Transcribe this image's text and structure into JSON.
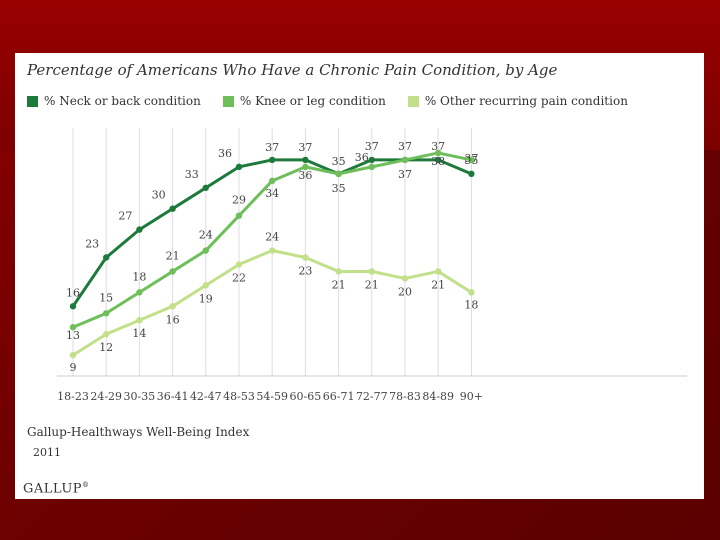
{
  "chart_data": {
    "type": "line",
    "title": "Percentage of Americans Who Have a Chronic Pain Condition, by Age",
    "categories": [
      "18-23",
      "24-29",
      "30-35",
      "36-41",
      "42-47",
      "48-53",
      "54-59",
      "60-65",
      "66-71",
      "72-77",
      "78-83",
      "84-89",
      "90+"
    ],
    "series": [
      {
        "name": "% Neck or back condition",
        "color": "#1e7a3a",
        "values": [
          16,
          23,
          27,
          30,
          33,
          36,
          37,
          37,
          35,
          37,
          37,
          37,
          35
        ]
      },
      {
        "name": "% Knee or leg condition",
        "color": "#6ebe5a",
        "values": [
          13,
          15,
          18,
          21,
          24,
          29,
          34,
          36,
          35,
          36,
          37,
          38,
          37
        ]
      },
      {
        "name": "% Other recurring pain condition",
        "color": "#c2e08a",
        "values": [
          9,
          12,
          14,
          16,
          19,
          22,
          24,
          23,
          21,
          21,
          20,
          21,
          18
        ]
      }
    ],
    "ylim": [
      6,
      40
    ],
    "grid": "vertical",
    "xlabel": "",
    "ylabel": ""
  },
  "source": {
    "line1": "Gallup-Healthways Well-Being Index",
    "line2": "2011"
  },
  "brand": "GALLUP",
  "brand_mark": "®"
}
